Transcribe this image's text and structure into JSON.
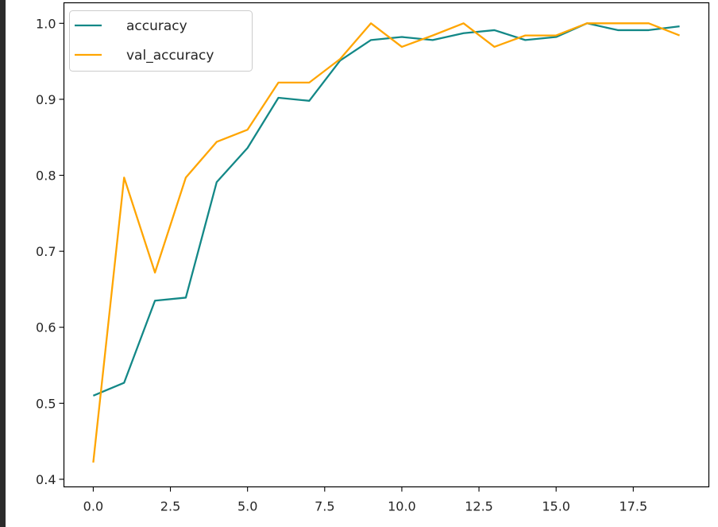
{
  "chart_data": {
    "type": "line",
    "title": "",
    "xlabel": "",
    "ylabel": "",
    "xlim": [
      -0.95,
      19.95
    ],
    "ylim": [
      0.39,
      1.027
    ],
    "x_ticks": [
      0.0,
      2.5,
      5.0,
      7.5,
      10.0,
      12.5,
      15.0,
      17.5
    ],
    "x_tick_labels": [
      "0.0",
      "2.5",
      "5.0",
      "7.5",
      "10.0",
      "12.5",
      "15.0",
      "17.5"
    ],
    "y_ticks": [
      0.4,
      0.5,
      0.6,
      0.7,
      0.8,
      0.9,
      1.0
    ],
    "y_tick_labels": [
      "0.4",
      "0.5",
      "0.6",
      "0.7",
      "0.8",
      "0.9",
      "1.0"
    ],
    "grid": false,
    "legend_position": "upper-left",
    "x": [
      0,
      1,
      2,
      3,
      4,
      5,
      6,
      7,
      8,
      9,
      10,
      11,
      12,
      13,
      14,
      15,
      16,
      17,
      18,
      19
    ],
    "series": [
      {
        "name": "accuracy",
        "color": "#138887",
        "values": [
          0.51,
          0.527,
          0.635,
          0.639,
          0.791,
          0.836,
          0.902,
          0.898,
          0.951,
          0.978,
          0.982,
          0.978,
          0.987,
          0.991,
          0.978,
          0.982,
          1.0,
          0.991,
          0.991,
          0.996
        ]
      },
      {
        "name": "val_accuracy",
        "color": "#ffa500",
        "values": [
          0.422,
          0.797,
          0.672,
          0.797,
          0.844,
          0.86,
          0.922,
          0.922,
          0.953,
          1.0,
          0.969,
          0.984,
          1.0,
          0.969,
          0.984,
          0.984,
          1.0,
          1.0,
          1.0,
          0.984
        ]
      }
    ]
  }
}
